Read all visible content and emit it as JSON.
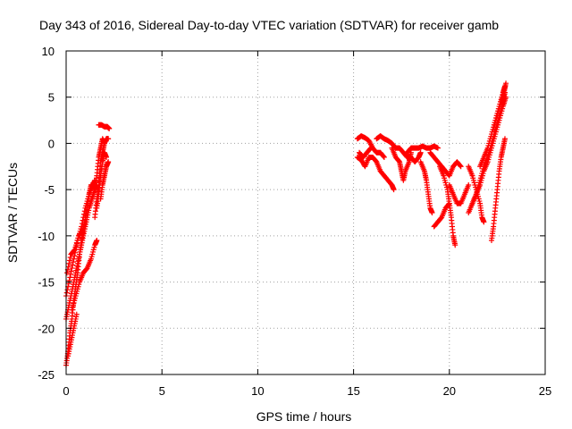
{
  "chart_data": {
    "type": "scatter",
    "title": "Day 343 of 2016, Sidereal Day-to-day VTEC variation (SDTVAR) for receiver gamb",
    "xlabel": "GPS time / hours",
    "ylabel": "SDTVAR / TECUs",
    "xlim": [
      0,
      25
    ],
    "ylim": [
      -25,
      10
    ],
    "xticks": [
      0,
      5,
      10,
      15,
      20,
      25
    ],
    "xtick_labels": [
      "0",
      "5",
      "10",
      "15",
      "20",
      "25"
    ],
    "yticks": [
      -25,
      -20,
      -15,
      -10,
      -5,
      0,
      5,
      10
    ],
    "ytick_labels": [
      "-25",
      "-20",
      "-15",
      "-10",
      "-5",
      "0",
      "5",
      "10"
    ],
    "grid": true,
    "marker": "+",
    "color": "#ff0000",
    "series": [
      {
        "name": "SDTVAR",
        "segments": [
          [
            [
              0.0,
              -24.0
            ],
            [
              0.1,
              -22.5
            ],
            [
              0.2,
              -20.5
            ],
            [
              0.3,
              -19.0
            ],
            [
              0.4,
              -17.0
            ],
            [
              0.5,
              -15.5
            ],
            [
              0.6,
              -14.0
            ],
            [
              0.7,
              -12.0
            ],
            [
              0.8,
              -10.5
            ],
            [
              0.9,
              -9.5
            ],
            [
              1.0,
              -8.0
            ],
            [
              1.1,
              -7.0
            ],
            [
              1.2,
              -5.5
            ],
            [
              1.3,
              -4.5
            ],
            [
              1.4,
              -4.5
            ],
            [
              1.5,
              -4.0
            ]
          ],
          [
            [
              0.0,
              -19.0
            ],
            [
              0.15,
              -17.5
            ],
            [
              0.3,
              -16.0
            ],
            [
              0.45,
              -14.5
            ],
            [
              0.6,
              -13.0
            ],
            [
              0.75,
              -11.5
            ],
            [
              0.9,
              -10.0
            ],
            [
              1.05,
              -8.5
            ],
            [
              1.2,
              -7.0
            ],
            [
              1.35,
              -6.0
            ],
            [
              1.5,
              -5.0
            ],
            [
              1.6,
              -4.5
            ]
          ],
          [
            [
              0.0,
              -16.5
            ],
            [
              0.2,
              -14.5
            ],
            [
              0.4,
              -12.5
            ],
            [
              0.6,
              -10.5
            ],
            [
              0.8,
              -9.0
            ],
            [
              1.0,
              -7.0
            ],
            [
              1.2,
              -5.5
            ],
            [
              1.4,
              -4.5
            ],
            [
              1.5,
              -4.3
            ]
          ],
          [
            [
              0.05,
              -14.0
            ],
            [
              0.25,
              -12.0
            ],
            [
              0.45,
              -11.5
            ],
            [
              0.65,
              -10.0
            ],
            [
              0.85,
              -9.5
            ],
            [
              1.0,
              -8.5
            ]
          ],
          [
            [
              0.3,
              -18.0
            ],
            [
              0.5,
              -16.5
            ],
            [
              0.7,
              -15.0
            ],
            [
              0.9,
              -14.0
            ],
            [
              1.1,
              -13.5
            ],
            [
              1.3,
              -12.5
            ],
            [
              1.5,
              -11.0
            ],
            [
              1.6,
              -10.5
            ]
          ],
          [
            [
              0.1,
              -23.0
            ],
            [
              0.25,
              -21.5
            ],
            [
              0.4,
              -20.0
            ],
            [
              0.55,
              -18.5
            ]
          ],
          [
            [
              1.5,
              -8.0
            ],
            [
              1.6,
              -6.0
            ],
            [
              1.7,
              -4.5
            ],
            [
              1.8,
              -2.0
            ],
            [
              1.9,
              -1.0
            ],
            [
              2.0,
              0.0
            ],
            [
              2.1,
              0.5
            ],
            [
              2.2,
              0.5
            ]
          ],
          [
            [
              1.5,
              -5.0
            ],
            [
              1.6,
              -3.5
            ],
            [
              1.7,
              -1.5
            ],
            [
              1.8,
              -0.5
            ],
            [
              1.9,
              0.5
            ],
            [
              2.0,
              0.0
            ]
          ],
          [
            [
              1.6,
              -7.0
            ],
            [
              1.7,
              -5.5
            ],
            [
              1.8,
              -3.5
            ],
            [
              1.9,
              -2.0
            ],
            [
              2.0,
              -1.0
            ],
            [
              2.1,
              -1.5
            ]
          ],
          [
            [
              1.8,
              -6.0
            ],
            [
              1.9,
              -4.5
            ],
            [
              2.0,
              -3.5
            ],
            [
              2.1,
              -2.5
            ],
            [
              2.2,
              -2.0
            ]
          ],
          [
            [
              1.7,
              2.0
            ],
            [
              1.85,
              2.0
            ],
            [
              2.0,
              1.8
            ],
            [
              2.15,
              1.8
            ],
            [
              2.25,
              1.6
            ]
          ],
          [
            [
              15.2,
              0.5
            ],
            [
              15.4,
              0.8
            ],
            [
              15.6,
              0.6
            ],
            [
              15.8,
              0.3
            ],
            [
              16.0,
              -0.5
            ],
            [
              16.2,
              -1.0
            ],
            [
              16.4,
              -1.0
            ],
            [
              16.6,
              -1.5
            ]
          ],
          [
            [
              15.2,
              -1.5
            ],
            [
              15.4,
              -1.8
            ],
            [
              15.6,
              -2.5
            ],
            [
              15.8,
              -1.5
            ],
            [
              16.0,
              -1.5
            ],
            [
              16.2,
              -2.0
            ],
            [
              16.4,
              -3.0
            ],
            [
              16.6,
              -3.5
            ],
            [
              16.8,
              -4.0
            ],
            [
              17.0,
              -4.5
            ],
            [
              17.1,
              -5.0
            ]
          ],
          [
            [
              15.3,
              -1.0
            ],
            [
              15.5,
              -1.5
            ],
            [
              15.7,
              -1.0
            ],
            [
              15.9,
              -0.5
            ]
          ],
          [
            [
              16.2,
              0.5
            ],
            [
              16.4,
              0.8
            ],
            [
              16.6,
              0.5
            ],
            [
              16.8,
              0.3
            ],
            [
              17.0,
              0.0
            ],
            [
              17.2,
              -0.5
            ],
            [
              17.4,
              -0.5
            ],
            [
              17.6,
              -1.0
            ],
            [
              17.8,
              -1.5
            ],
            [
              18.0,
              -1.5
            ],
            [
              18.2,
              -2.0
            ],
            [
              18.4,
              -1.5
            ],
            [
              18.5,
              -1.0
            ]
          ],
          [
            [
              17.0,
              -0.5
            ],
            [
              17.2,
              -1.5
            ],
            [
              17.4,
              -2.0
            ],
            [
              17.5,
              -3.0
            ],
            [
              17.6,
              -4.0
            ],
            [
              17.7,
              -3.0
            ],
            [
              17.9,
              -2.0
            ],
            [
              18.0,
              -1.0
            ]
          ],
          [
            [
              17.8,
              -1.0
            ],
            [
              18.0,
              -0.5
            ],
            [
              18.2,
              -0.5
            ],
            [
              18.4,
              -0.5
            ],
            [
              18.6,
              -0.3
            ],
            [
              18.8,
              -0.5
            ],
            [
              19.0,
              -0.5
            ],
            [
              19.2,
              -0.3
            ],
            [
              19.4,
              -0.5
            ]
          ],
          [
            [
              19.0,
              -1.0
            ],
            [
              19.2,
              -1.5
            ],
            [
              19.4,
              -2.0
            ],
            [
              19.6,
              -2.5
            ],
            [
              19.8,
              -3.0
            ],
            [
              20.0,
              -3.5
            ],
            [
              20.2,
              -2.5
            ],
            [
              20.4,
              -2.0
            ],
            [
              20.6,
              -2.5
            ]
          ],
          [
            [
              18.5,
              -2.0
            ],
            [
              18.7,
              -3.0
            ],
            [
              18.8,
              -4.0
            ],
            [
              18.9,
              -5.5
            ],
            [
              19.0,
              -7.0
            ],
            [
              19.1,
              -7.5
            ]
          ],
          [
            [
              19.5,
              -2.5
            ],
            [
              19.7,
              -3.5
            ],
            [
              19.9,
              -5.0
            ],
            [
              20.0,
              -6.5
            ],
            [
              20.1,
              -8.0
            ],
            [
              20.2,
              -10.0
            ],
            [
              20.3,
              -11.0
            ]
          ],
          [
            [
              20.0,
              -4.5
            ],
            [
              20.2,
              -5.5
            ],
            [
              20.4,
              -6.5
            ],
            [
              20.6,
              -6.5
            ],
            [
              20.8,
              -5.5
            ],
            [
              21.0,
              -4.5
            ]
          ],
          [
            [
              19.2,
              -9.0
            ],
            [
              19.4,
              -8.5
            ],
            [
              19.6,
              -8.0
            ],
            [
              19.8,
              -7.0
            ],
            [
              20.0,
              -6.5
            ]
          ],
          [
            [
              21.0,
              -2.5
            ],
            [
              21.2,
              -3.5
            ],
            [
              21.4,
              -5.0
            ],
            [
              21.6,
              -6.5
            ],
            [
              21.7,
              -8.0
            ],
            [
              21.8,
              -8.5
            ]
          ],
          [
            [
              21.2,
              -6.5
            ],
            [
              21.4,
              -5.5
            ],
            [
              21.6,
              -4.0
            ],
            [
              21.8,
              -2.5
            ],
            [
              22.0,
              -1.5
            ],
            [
              22.2,
              0.0
            ],
            [
              22.4,
              1.5
            ],
            [
              22.6,
              3.0
            ],
            [
              22.8,
              4.5
            ],
            [
              22.9,
              5.5
            ]
          ],
          [
            [
              21.0,
              -7.5
            ],
            [
              21.2,
              -6.5
            ],
            [
              21.4,
              -5.5
            ],
            [
              21.6,
              -4.5
            ],
            [
              21.8,
              -3.0
            ],
            [
              22.0,
              -2.0
            ],
            [
              22.2,
              -0.5
            ],
            [
              22.4,
              1.0
            ],
            [
              22.6,
              2.5
            ],
            [
              22.8,
              4.0
            ],
            [
              22.95,
              5.0
            ]
          ],
          [
            [
              22.2,
              -10.5
            ],
            [
              22.3,
              -9.0
            ],
            [
              22.4,
              -7.0
            ],
            [
              22.5,
              -5.0
            ],
            [
              22.6,
              -3.0
            ],
            [
              22.7,
              -1.5
            ],
            [
              22.8,
              -0.5
            ],
            [
              22.9,
              0.5
            ]
          ],
          [
            [
              22.3,
              1.5
            ],
            [
              22.5,
              3.0
            ],
            [
              22.7,
              4.5
            ],
            [
              22.85,
              5.5
            ],
            [
              22.95,
              6.5
            ]
          ],
          [
            [
              21.6,
              -2.5
            ],
            [
              21.8,
              -1.5
            ],
            [
              22.0,
              -0.5
            ],
            [
              22.2,
              1.0
            ],
            [
              22.4,
              2.5
            ],
            [
              22.6,
              4.0
            ],
            [
              22.8,
              5.5
            ],
            [
              22.9,
              6.2
            ]
          ]
        ]
      }
    ]
  }
}
